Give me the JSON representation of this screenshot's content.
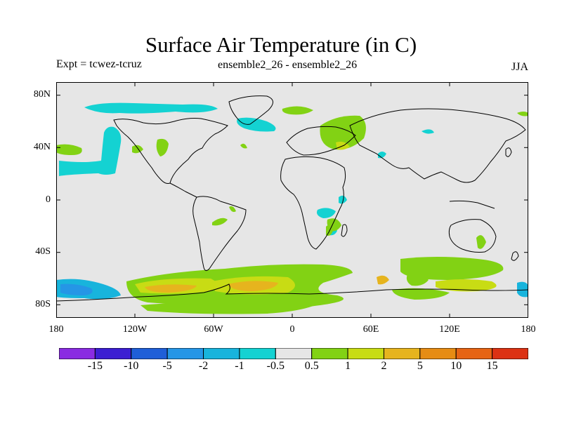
{
  "title": "Surface Air Temperature (in C)",
  "experiment": "Expt = tcwez-tcruz",
  "comparison": "ensemble2_26 - ensemble2_26",
  "season": "JJA",
  "axes": {
    "lat_ticks": [
      "80N",
      "40N",
      "0",
      "40S",
      "80S"
    ],
    "lat_values": [
      80,
      40,
      0,
      -40,
      -80
    ],
    "lon_ticks": [
      "180",
      "120W",
      "60W",
      "0",
      "60E",
      "120E",
      "180"
    ],
    "lon_values": [
      -180,
      -120,
      -60,
      0,
      60,
      120,
      180
    ],
    "lon_range": [
      -180,
      180
    ],
    "lat_range": [
      -90,
      90
    ]
  },
  "colorbar": {
    "labels": [
      "-15",
      "-10",
      "-5",
      "-2",
      "-1",
      "-0.5",
      "0.5",
      "1",
      "2",
      "5",
      "10",
      "15"
    ],
    "colors": [
      "#8a2be2",
      "#3c1ed2",
      "#1f5fd8",
      "#2596e6",
      "#18b4dc",
      "#14d2d2",
      "#e6e6e6",
      "#82d214",
      "#c8dc14",
      "#e6b41e",
      "#e68c14",
      "#e66414",
      "#dc3214"
    ]
  },
  "colors": {
    "background": "#e6e6e6",
    "coast": "#000000"
  }
}
